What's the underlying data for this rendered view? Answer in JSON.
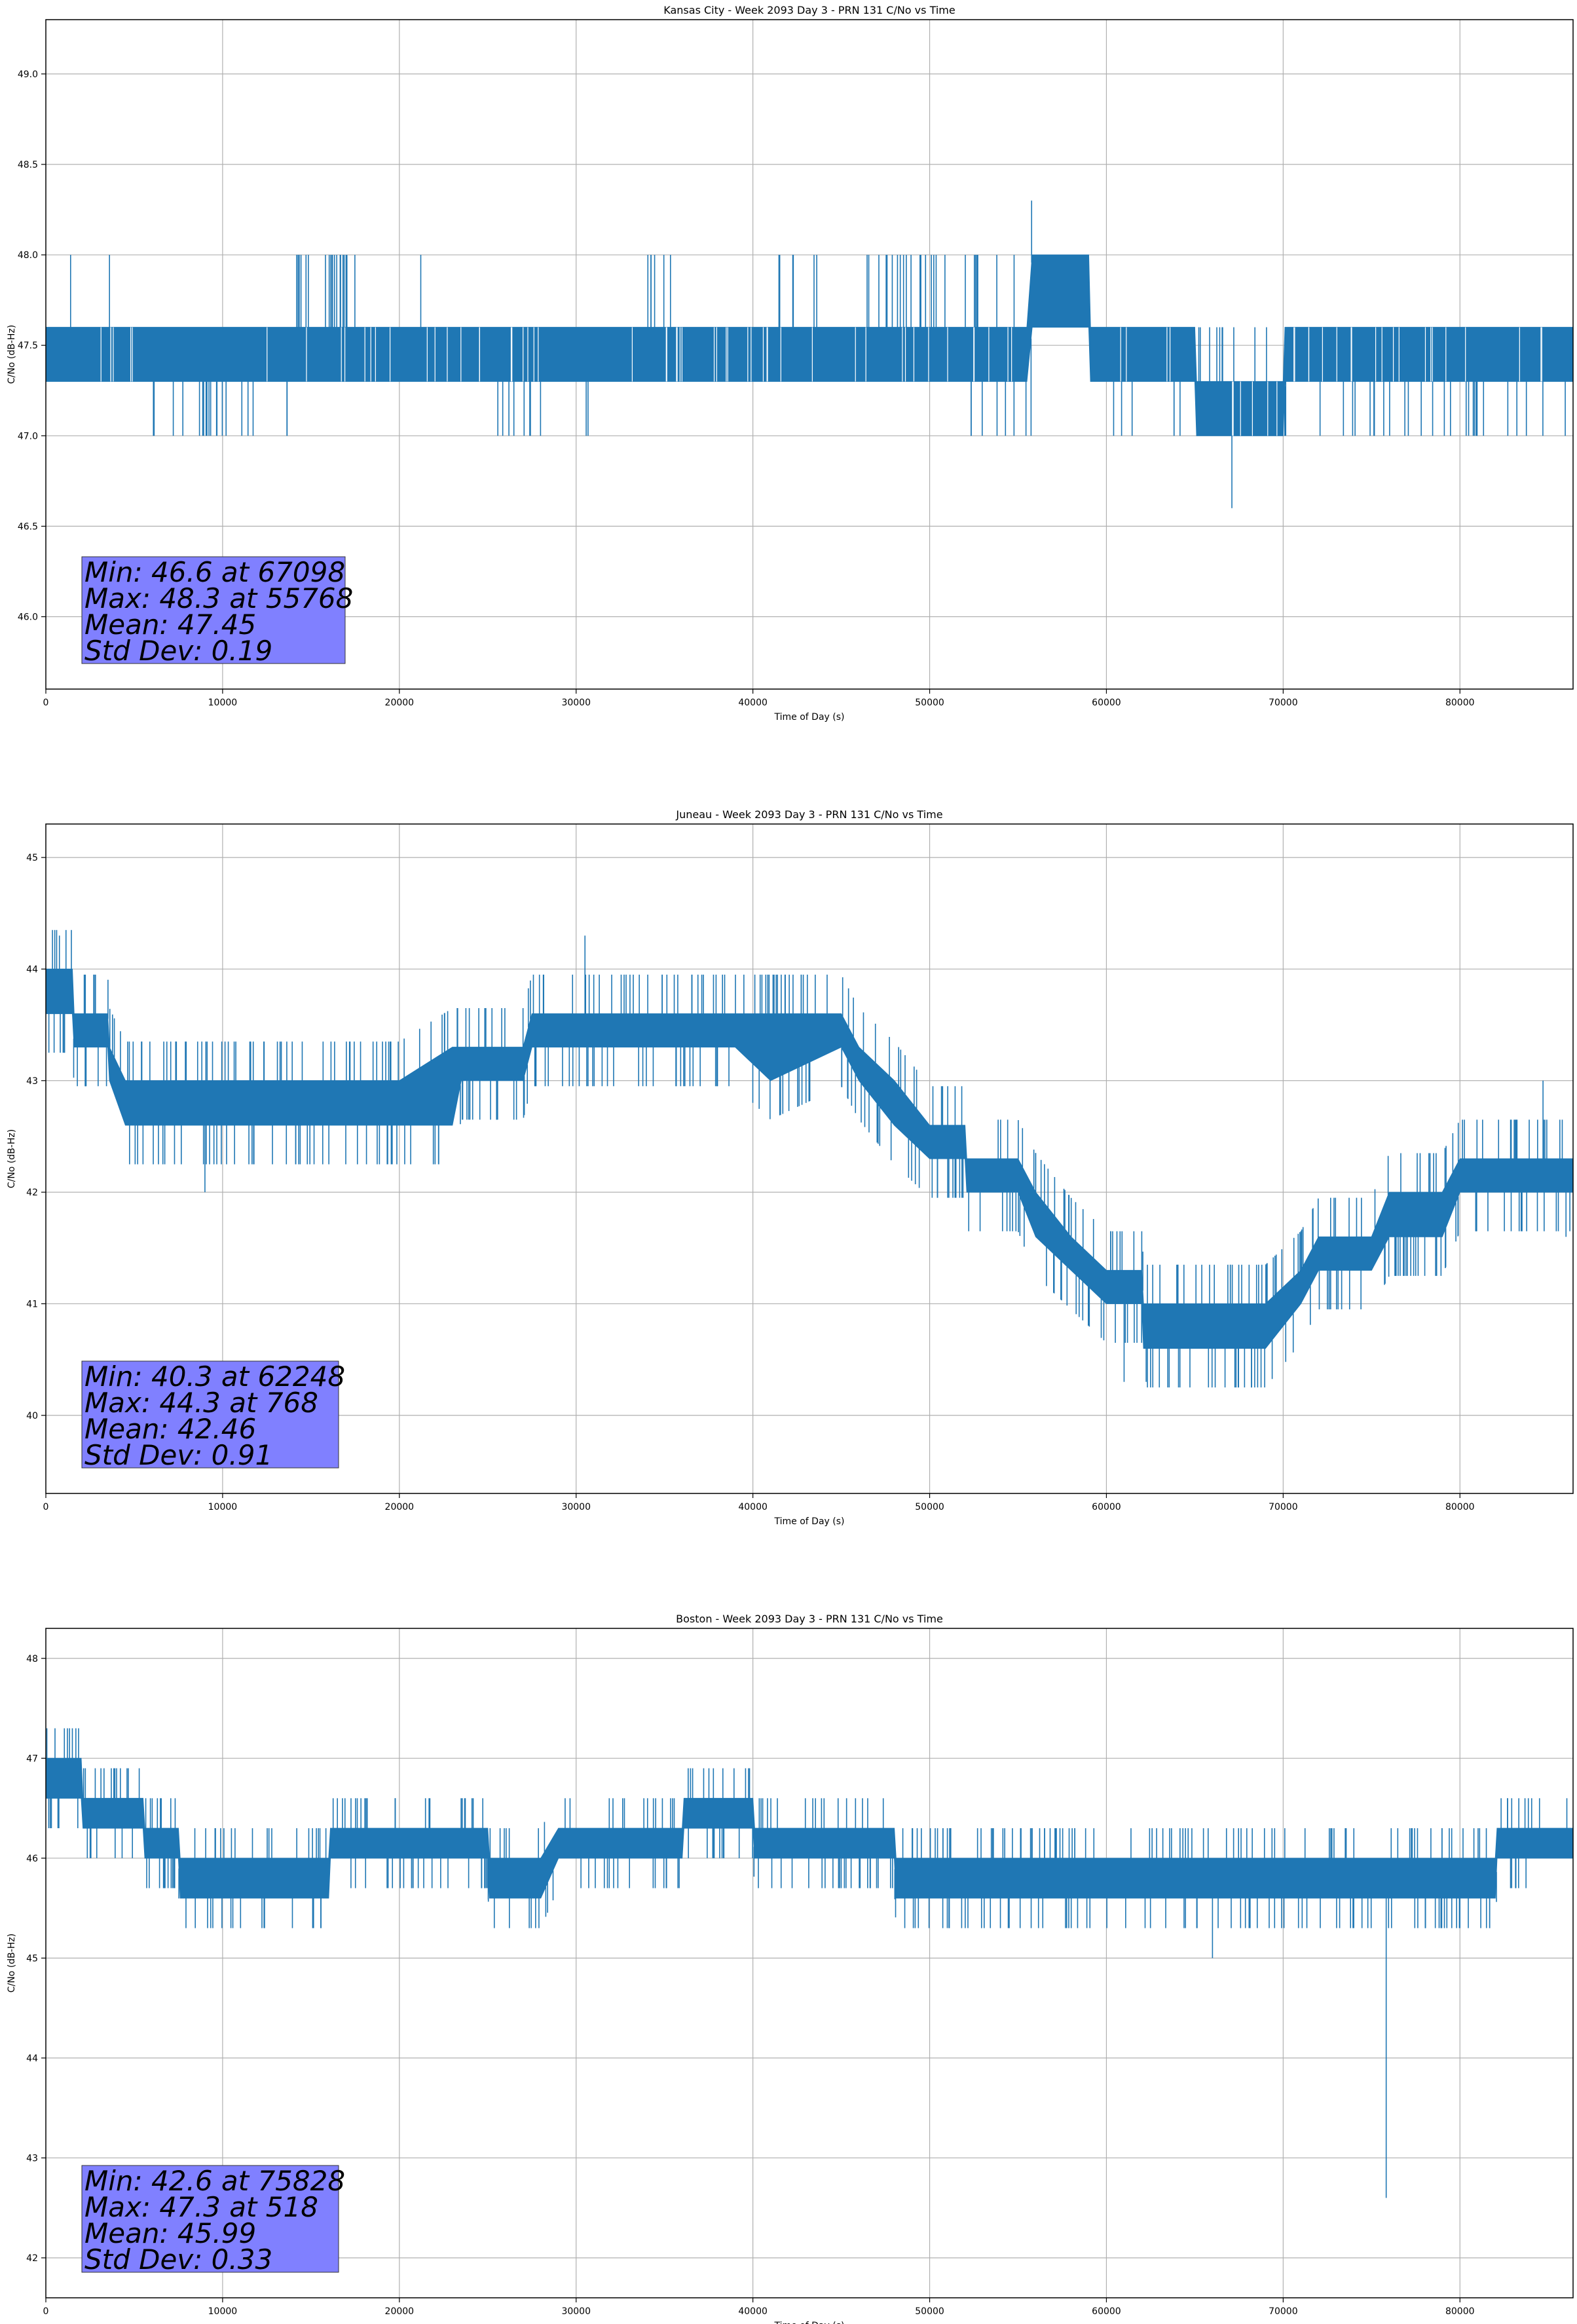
{
  "colors": {
    "series": "#1f77b4",
    "grid": "#b0b0b0",
    "stats_box": "#8080ff",
    "axes": "#000000"
  },
  "chart_data": [
    {
      "type": "line",
      "title": "Kansas City - Week 2093 Day 3 - PRN 131 C/No vs Time",
      "xlabel": "Time of Day (s)",
      "ylabel": "C/No (dB-Hz)",
      "xlim": [
        0,
        86400
      ],
      "ylim": [
        45.6,
        49.3
      ],
      "grid": true,
      "xticks": [
        0,
        10000,
        20000,
        30000,
        40000,
        50000,
        60000,
        70000,
        80000
      ],
      "yticks": [
        46.0,
        46.5,
        47.0,
        47.5,
        48.0,
        48.5,
        49.0
      ],
      "ytick_labels": [
        "46.0",
        "46.5",
        "47.0",
        "47.5",
        "48.0",
        "48.5",
        "49.0"
      ],
      "series": [
        {
          "band": [
            [
              0,
              47.3,
              47.6
            ],
            [
              6000,
              47.3,
              47.6
            ],
            [
              14000,
              47.3,
              47.6
            ],
            [
              25000,
              47.3,
              47.6
            ],
            [
              30000,
              47.3,
              47.6
            ],
            [
              40000,
              47.3,
              47.6
            ],
            [
              48000,
              47.3,
              47.6
            ],
            [
              55500,
              47.3,
              47.6
            ],
            [
              55800,
              47.6,
              48.0
            ],
            [
              59000,
              47.6,
              48.0
            ],
            [
              59100,
              47.3,
              47.6
            ],
            [
              65000,
              47.3,
              47.6
            ],
            [
              65100,
              47.0,
              47.3
            ],
            [
              70000,
              47.0,
              47.3
            ],
            [
              70100,
              47.3,
              47.6
            ],
            [
              86400,
              47.3,
              47.6
            ]
          ],
          "spikes": [
            [
              1400,
              48.0
            ],
            [
              3600,
              48.0
            ],
            [
              55768,
              48.3
            ],
            [
              67098,
              46.6
            ]
          ],
          "noise": {
            "ups": [
              [
                13500,
                17500,
                48.0,
                20
              ],
              [
                21200,
                21300,
                48.0,
                1
              ],
              [
                33500,
                35500,
                48.0,
                6
              ],
              [
                41000,
                44000,
                48.0,
                6
              ],
              [
                46000,
                51000,
                48.0,
                18
              ],
              [
                51000,
                55000,
                48.0,
                8
              ],
              [
                65200,
                70000,
                47.6,
                10
              ]
            ],
            "downs": [
              [
                6000,
                12000,
                47.0,
                18
              ],
              [
                13000,
                14000,
                47.0,
                2
              ],
              [
                25000,
                28000,
                47.0,
                8
              ],
              [
                30000,
                31000,
                47.0,
                2
              ],
              [
                52000,
                56000,
                47.0,
                8
              ],
              [
                59000,
                65000,
                47.0,
                6
              ],
              [
                70000,
                86000,
                47.0,
                30
              ],
              [
                65200,
                70000,
                47.0,
                5
              ]
            ],
            "gaps": [
              [
                2000,
                5500,
                47.45,
                6
              ],
              [
                33000,
                55000,
                47.45,
                30
              ],
              [
                60000,
                86400,
                47.45,
                30
              ],
              [
                12000,
                28000,
                47.45,
                20
              ]
            ]
          }
        }
      ],
      "stats": [
        "Min: 46.6 at 67098",
        "Max: 48.3 at 55768",
        "Mean: 47.45",
        "Std Dev: 0.19"
      ]
    },
    {
      "type": "line",
      "title": "Juneau - Week 2093 Day 3 - PRN 131 C/No vs Time",
      "xlabel": "Time of Day (s)",
      "ylabel": "C/No (dB-Hz)",
      "xlim": [
        0,
        86400
      ],
      "ylim": [
        39.3,
        45.3
      ],
      "grid": true,
      "xticks": [
        0,
        10000,
        20000,
        30000,
        40000,
        50000,
        60000,
        70000,
        80000
      ],
      "yticks": [
        40,
        41,
        42,
        43,
        44,
        45
      ],
      "ytick_labels": [
        "40",
        "41",
        "42",
        "43",
        "44",
        "45"
      ],
      "series": [
        {
          "band": [
            [
              0,
              43.6,
              44.0
            ],
            [
              1500,
              43.6,
              44.0
            ],
            [
              1600,
              43.3,
              43.6
            ],
            [
              3500,
              43.3,
              43.6
            ],
            [
              3600,
              43.0,
              43.3
            ],
            [
              4500,
              42.6,
              43.0
            ],
            [
              7000,
              42.6,
              43.0
            ],
            [
              12000,
              42.6,
              43.0
            ],
            [
              16000,
              42.6,
              43.0
            ],
            [
              20000,
              42.6,
              43.0
            ],
            [
              23000,
              42.6,
              43.3
            ],
            [
              23500,
              43.0,
              43.3
            ],
            [
              26000,
              43.0,
              43.3
            ],
            [
              27000,
              43.0,
              43.3
            ],
            [
              27500,
              43.3,
              43.6
            ],
            [
              33000,
              43.3,
              43.6
            ],
            [
              39000,
              43.3,
              43.6
            ],
            [
              41000,
              43.0,
              43.6
            ],
            [
              45000,
              43.3,
              43.6
            ],
            [
              46000,
              43.0,
              43.3
            ],
            [
              48000,
              42.6,
              43.0
            ],
            [
              50000,
              42.3,
              42.6
            ],
            [
              52000,
              42.3,
              42.6
            ],
            [
              52100,
              42.0,
              42.3
            ],
            [
              55000,
              42.0,
              42.3
            ],
            [
              56000,
              41.6,
              42.0
            ],
            [
              58000,
              41.3,
              41.6
            ],
            [
              60000,
              41.0,
              41.3
            ],
            [
              62000,
              41.0,
              41.3
            ],
            [
              62100,
              40.6,
              41.0
            ],
            [
              69000,
              40.6,
              41.0
            ],
            [
              71000,
              41.0,
              41.3
            ],
            [
              72000,
              41.3,
              41.6
            ],
            [
              75000,
              41.3,
              41.6
            ],
            [
              76000,
              41.6,
              42.0
            ],
            [
              79000,
              41.6,
              42.0
            ],
            [
              80000,
              42.0,
              42.3
            ],
            [
              86400,
              42.0,
              42.3
            ]
          ],
          "spikes": [
            [
              768,
              44.3
            ],
            [
              9000,
              42.0
            ],
            [
              61000,
              40.3
            ],
            [
              30500,
              44.3
            ],
            [
              62248,
              40.3
            ],
            [
              84700,
              43.0
            ],
            [
              86000,
              41.6
            ]
          ],
          "noise": {
            "ups": [
              [
                0,
                86400,
                0.35,
                260
              ]
            ],
            "downs": [
              [
                0,
                86400,
                -0.35,
                260
              ]
            ],
            "gaps": []
          }
        }
      ],
      "stats": [
        "Min: 40.3 at 62248",
        "Max: 44.3 at 768",
        "Mean: 42.46",
        "Std Dev: 0.91"
      ]
    },
    {
      "type": "line",
      "title": "Boston - Week 2093 Day 3 - PRN 131 C/No vs Time",
      "xlabel": "Time of Day (s)",
      "ylabel": "C/No (dB-Hz)",
      "xlim": [
        0,
        86400
      ],
      "ylim": [
        41.6,
        48.3
      ],
      "grid": true,
      "xticks": [
        0,
        10000,
        20000,
        30000,
        40000,
        50000,
        60000,
        70000,
        80000
      ],
      "yticks": [
        42,
        43,
        44,
        45,
        46,
        47,
        48
      ],
      "ytick_labels": [
        "42",
        "43",
        "44",
        "45",
        "46",
        "47",
        "48"
      ],
      "series": [
        {
          "band": [
            [
              0,
              46.6,
              47.0
            ],
            [
              2000,
              46.6,
              47.0
            ],
            [
              2100,
              46.3,
              46.6
            ],
            [
              5500,
              46.3,
              46.6
            ],
            [
              5600,
              46.0,
              46.3
            ],
            [
              7500,
              46.0,
              46.3
            ],
            [
              7600,
              45.6,
              46.0
            ],
            [
              16000,
              45.6,
              46.0
            ],
            [
              16100,
              46.0,
              46.3
            ],
            [
              25000,
              46.0,
              46.3
            ],
            [
              25100,
              45.6,
              46.0
            ],
            [
              28000,
              45.6,
              46.0
            ],
            [
              29000,
              46.0,
              46.3
            ],
            [
              36000,
              46.0,
              46.3
            ],
            [
              36100,
              46.3,
              46.6
            ],
            [
              40000,
              46.3,
              46.6
            ],
            [
              40100,
              46.0,
              46.3
            ],
            [
              48000,
              46.0,
              46.3
            ],
            [
              48100,
              45.6,
              46.0
            ],
            [
              82000,
              45.6,
              46.0
            ],
            [
              82100,
              46.0,
              46.3
            ],
            [
              86400,
              46.0,
              46.3
            ]
          ],
          "spikes": [
            [
              518,
              47.3
            ],
            [
              1500,
              47.3
            ],
            [
              66000,
              45.0
            ],
            [
              75828,
              42.6
            ]
          ],
          "noise": {
            "ups": [
              [
                0,
                86400,
                0.3,
                220
              ]
            ],
            "downs": [
              [
                0,
                86400,
                -0.3,
                220
              ]
            ],
            "gaps": []
          }
        }
      ],
      "stats": [
        "Min: 42.6 at 75828",
        "Max: 47.3 at 518",
        "Mean: 45.99",
        "Std Dev: 0.33"
      ]
    }
  ]
}
